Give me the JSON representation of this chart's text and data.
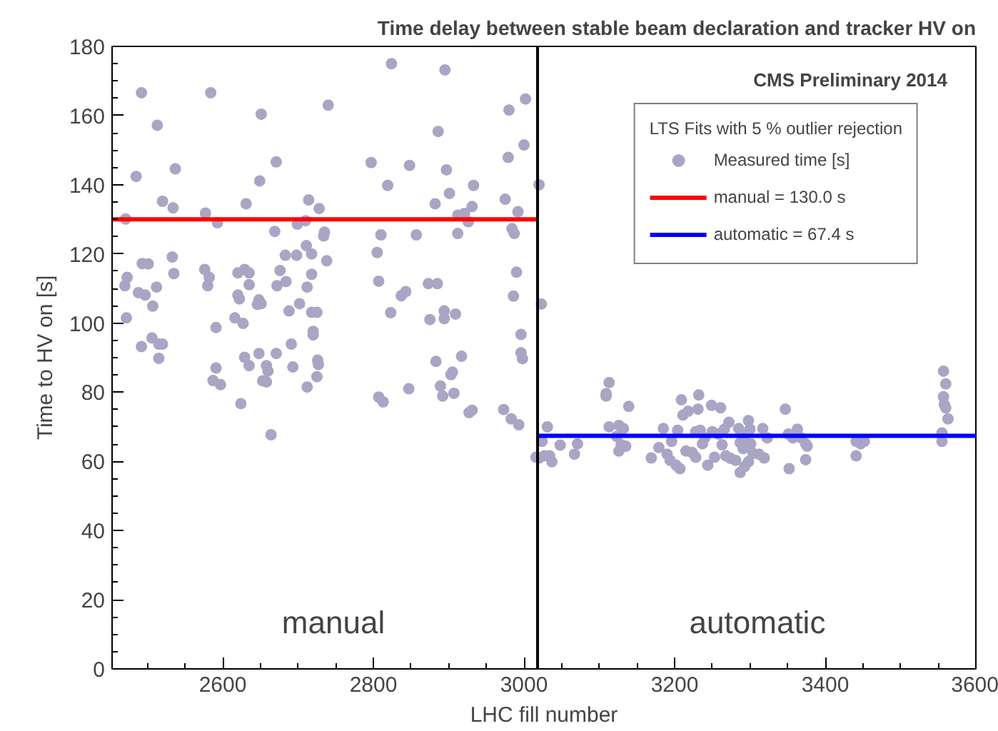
{
  "chart_data": {
    "type": "scatter",
    "title": "Time delay between stable beam declaration and tracker HV on",
    "xlabel": "LHC fill number",
    "ylabel": "Time to HV on [s]",
    "legend_title": "LTS Fits with 5 % outlier rejection",
    "annotations": [
      "CMS Preliminary 2014",
      "manual",
      "automatic"
    ],
    "xlim": [
      2453,
      3600
    ],
    "ylim": [
      0,
      180
    ],
    "xticks": [
      2600,
      2800,
      3000,
      3200,
      3400,
      3600
    ],
    "yticks": [
      0,
      20,
      40,
      60,
      80,
      100,
      120,
      140,
      160,
      180
    ],
    "grid": false,
    "legend": "top right",
    "ref_lines": [
      {
        "axis": "x",
        "value": 3018,
        "color": "#000000"
      }
    ],
    "series": [
      {
        "name": "Measured time [s]",
        "color": "#a8a6c4",
        "marker": "circle",
        "x": [
          2471,
          2473,
          2470,
          2472,
          2485,
          2492,
          2493,
          2501,
          2488,
          2497,
          2492,
          2506,
          2507,
          2512,
          2513,
          2515,
          2520,
          2515,
          2520,
          2533,
          2535,
          2534,
          2537,
          2576,
          2582,
          2580,
          2584,
          2577,
          2593,
          2591,
          2591,
          2587,
          2597,
          2616,
          2620,
          2622,
          2627,
          2624,
          2620,
          2629,
          2635,
          2635,
          2631,
          2629,
          2635,
          2648,
          2646,
          2651,
          2648,
          2651,
          2649,
          2653,
          2658,
          2658,
          2660,
          2664,
          2671,
          2669,
          2672,
          2671,
          2676,
          2683,
          2684,
          2688,
          2691,
          2693,
          2698,
          2699,
          2702,
          2710,
          2711,
          2712,
          2712,
          2714,
          2718,
          2718,
          2718,
          2720,
          2720,
          2725,
          2725,
          2726,
          2727,
          2728,
          2734,
          2735,
          2738,
          2740,
          2824,
          2895,
          2886,
          2980,
          3002,
          3000,
          2979,
          2797,
          2848,
          2897,
          2819,
          2933,
          3020,
          2901,
          2882,
          2931,
          2975,
          2912,
          2921,
          2926,
          2992,
          2984,
          2987,
          2810,
          2857,
          2912,
          2805,
          2990,
          2807,
          2873,
          2885,
          2986,
          3023,
          2843,
          2837,
          2823,
          2875,
          2894,
          2894,
          2909,
          2996,
          2996,
          2998,
          2883,
          2917,
          2905,
          2903,
          2847,
          2889,
          2892,
          2907,
          2807,
          2813,
          2927,
          2931,
          2973,
          2983,
          2993,
          3016,
          3031,
          3024,
          3020,
          3027,
          3037,
          3034,
          3048,
          3067,
          3071,
          3113,
          3109,
          3109,
          3139,
          3113,
          3126,
          3132,
          3123,
          3129,
          3126,
          3135,
          3169,
          3179,
          3185,
          3190,
          3194,
          3202,
          3207,
          3196,
          3204,
          3209,
          3211,
          3218,
          3231,
          3232,
          3215,
          3223,
          3228,
          3228,
          3234,
          3240,
          3237,
          3244,
          3253,
          3249,
          3261,
          3250,
          3258,
          3263,
          3266,
          3272,
          3268,
          3274,
          3281,
          3285,
          3287,
          3291,
          3293,
          3298,
          3300,
          3298,
          3293,
          3287,
          3301,
          3304,
          3312,
          3319,
          3317,
          3323,
          3347,
          3351,
          3357,
          3352,
          3363,
          3368,
          3374,
          3376,
          3374,
          3441,
          3447,
          3452,
          3441,
          3557,
          3560,
          3557,
          3558,
          3560,
          3563,
          3555,
          3555
        ],
        "values": [
          130.1,
          113.2,
          110.8,
          101.5,
          142.4,
          166.6,
          117.2,
          117.1,
          108.8,
          108.1,
          93.2,
          95.7,
          104.9,
          110.4,
          157.2,
          93.9,
          93.9,
          89.8,
          135.2,
          119.1,
          114.3,
          133.3,
          144.6,
          115.5,
          113.2,
          110.8,
          166.6,
          131.8,
          129.0,
          98.7,
          87.0,
          83.4,
          82.2,
          101.5,
          108.1,
          107.0,
          99.9,
          76.7,
          114.5,
          115.5,
          114.5,
          111.1,
          134.5,
          90.1,
          87.7,
          106.7,
          105.4,
          105.6,
          91.2,
          160.4,
          141.1,
          83.3,
          87.7,
          83.0,
          86.1,
          67.7,
          146.6,
          126.5,
          110.8,
          91.2,
          115.2,
          119.6,
          112.0,
          103.5,
          93.9,
          87.3,
          119.6,
          128.6,
          105.6,
          129.6,
          122.4,
          110.4,
          81.5,
          135.6,
          120.0,
          114.1,
          103.1,
          97.6,
          96.6,
          103.1,
          84.5,
          89.3,
          88.0,
          133.1,
          125.2,
          126.3,
          118.0,
          163.0,
          175.0,
          173.2,
          155.4,
          161.6,
          164.8,
          151.5,
          147.9,
          146.4,
          145.6,
          144.3,
          139.8,
          139.8,
          140.0,
          137.5,
          134.5,
          133.7,
          135.8,
          131.2,
          131.7,
          129.3,
          132.2,
          127.3,
          125.9,
          125.5,
          125.5,
          125.9,
          120.4,
          114.7,
          112.1,
          111.4,
          111.4,
          107.8,
          105.5,
          109.1,
          107.9,
          103.0,
          101.0,
          103.5,
          101.3,
          102.6,
          96.7,
          91.4,
          89.7,
          88.9,
          90.4,
          85.8,
          85.1,
          81.0,
          81.8,
          78.9,
          79.7,
          78.6,
          77.2,
          74.1,
          74.8,
          75.0,
          72.3,
          70.6,
          61.2,
          70.0,
          65.8,
          61.0,
          61.6,
          59.9,
          61.6,
          64.7,
          62.1,
          65.1,
          82.8,
          79.6,
          78.9,
          75.9,
          70.0,
          70.4,
          69.5,
          67.2,
          64.8,
          63.0,
          64.4,
          61.0,
          64.0,
          69.5,
          62.1,
          60.3,
          58.9,
          57.9,
          65.8,
          69.0,
          77.8,
          73.4,
          74.5,
          75.1,
          79.2,
          63.0,
          62.6,
          61.2,
          68.6,
          69.0,
          66.8,
          65.1,
          58.9,
          61.2,
          76.2,
          75.5,
          68.6,
          67.9,
          64.8,
          69.3,
          71.3,
          61.6,
          60.9,
          60.3,
          69.5,
          65.4,
          63.7,
          67.6,
          71.8,
          69.3,
          59.9,
          58.5,
          56.8,
          65.1,
          62.3,
          62.1,
          61.0,
          69.5,
          66.8,
          75.1,
          67.9,
          66.8,
          57.9,
          69.3,
          66.8,
          65.1,
          64.4,
          60.5,
          65.8,
          65.1,
          65.8,
          61.6,
          86.1,
          82.4,
          78.7,
          76.5,
          75.5,
          72.3,
          68.2,
          65.8
        ]
      },
      {
        "name": "manual = 130.0 s",
        "color": "#ff0000",
        "type": "line",
        "x": [
          2453,
          3018
        ],
        "values": [
          130.0,
          130.0
        ]
      },
      {
        "name": "automatic = 67.4 s",
        "color": "#0000ff",
        "type": "line",
        "x": [
          3018,
          3600
        ],
        "values": [
          67.4,
          67.4
        ]
      }
    ]
  }
}
